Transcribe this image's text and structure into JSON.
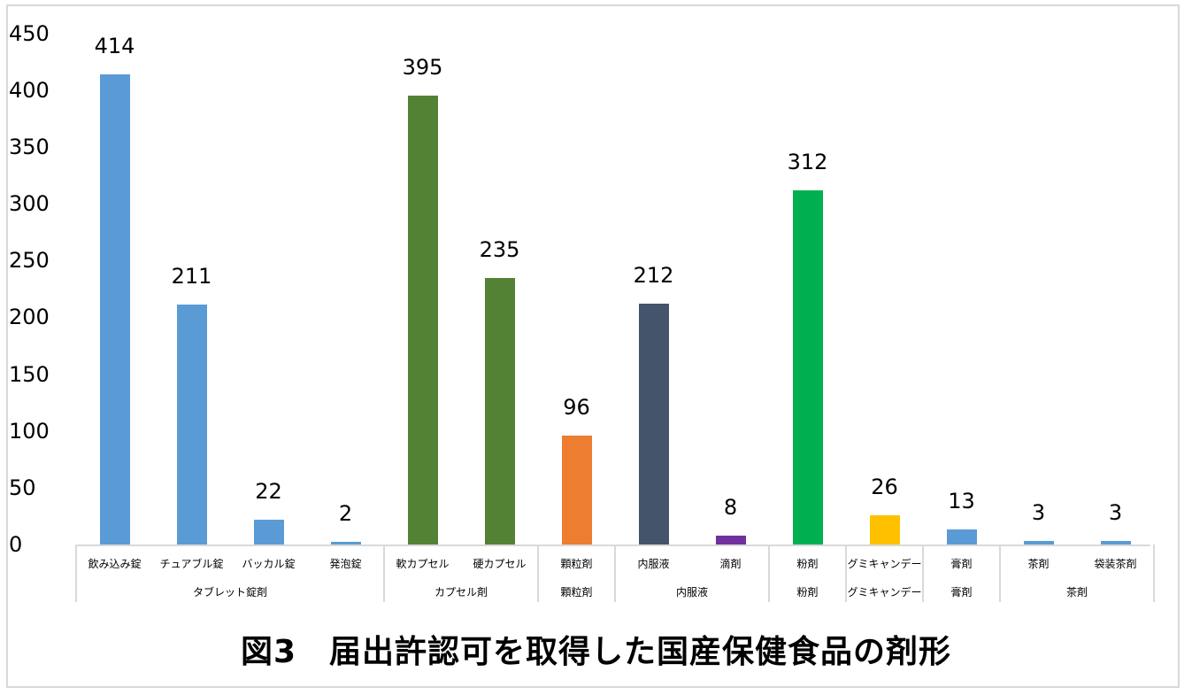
{
  "chart_data": {
    "type": "bar",
    "title": "図3　届出許認可を取得した国産保健食品の剤形",
    "xlabel": "",
    "ylabel": "",
    "ylim": [
      0,
      450
    ],
    "yticks": [
      0,
      50,
      100,
      150,
      200,
      250,
      300,
      350,
      400,
      450
    ],
    "grid": false,
    "legend": null,
    "categories": [
      "飲み込み錠",
      "チュアブル錠",
      "バッカル錠",
      "発泡錠",
      "軟カプセル",
      "硬カプセル",
      "顆粒剤",
      "内服液",
      "滴剤",
      "粉剤",
      "グミキャンデー",
      "膏剤",
      "茶剤",
      "袋装茶剤"
    ],
    "values": [
      414,
      211,
      22,
      2,
      395,
      235,
      96,
      212,
      8,
      312,
      26,
      13,
      3,
      3
    ],
    "colors": [
      "#5b9bd5",
      "#5b9bd5",
      "#5b9bd5",
      "#5b9bd5",
      "#548235",
      "#548235",
      "#ed7d31",
      "#44546a",
      "#7030a0",
      "#00b050",
      "#ffc000",
      "#5b9bd5",
      "#5b9bd5",
      "#5b9bd5"
    ],
    "groups": [
      {
        "label": "タブレット錠剤",
        "span": 4
      },
      {
        "label": "カプセル剤",
        "span": 2
      },
      {
        "label": "顆粒剤",
        "span": 1
      },
      {
        "label": "内服液",
        "span": 2
      },
      {
        "label": "粉剤",
        "span": 1
      },
      {
        "label": "グミキャンデー",
        "span": 1
      },
      {
        "label": "膏剤",
        "span": 1
      },
      {
        "label": "茶剤",
        "span": 2
      }
    ]
  },
  "yaxis": {
    "ticks": [
      "0",
      "50",
      "100",
      "150",
      "200",
      "250",
      "300",
      "350",
      "400",
      "450"
    ]
  },
  "title": "図3　届出許認可を取得した国産保健食品の剤形"
}
